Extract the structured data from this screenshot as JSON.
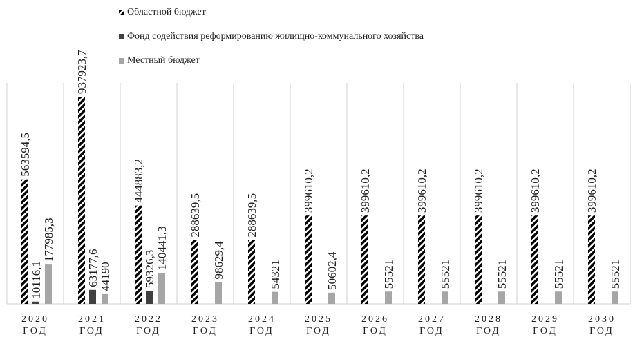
{
  "chart_data": {
    "type": "bar",
    "categories": [
      "2020 ГОД",
      "2021 ГОД",
      "2022 ГОД",
      "2023 ГОД",
      "2024 ГОД",
      "2025 ГОД",
      "2026 ГОД",
      "2027 ГОД",
      "2028 ГОД",
      "2029 ГОД",
      "2030 ГОД"
    ],
    "series": [
      {
        "name": "Областной бюджет",
        "color": "#000000",
        "hatch": true,
        "values": [
          563594.5,
          937923.7,
          444883.2,
          288639.5,
          288639.5,
          399610.2,
          399610.2,
          399610.2,
          399610.2,
          399610.2,
          399610.2
        ],
        "value_labels": [
          "563594,5",
          "937923,7",
          "444883,2",
          "288639,5",
          "288639,5",
          "399610,2",
          "399610,2",
          "399610,2",
          "399610,2",
          "399610,2",
          "399610,2"
        ]
      },
      {
        "name": "Фонд содействия реформированию жилищно-коммунального хозяйства",
        "color": "#404040",
        "values": [
          10116.1,
          63177.6,
          59326.3,
          null,
          null,
          null,
          null,
          null,
          null,
          null,
          null
        ],
        "value_labels": [
          "10116,1",
          "63177,6",
          "59326,3",
          null,
          null,
          null,
          null,
          null,
          null,
          null,
          null
        ]
      },
      {
        "name": "Местный бюджет",
        "color": "#a6a6a6",
        "values": [
          177985.3,
          44190,
          140441.3,
          98629.4,
          54321,
          50602.4,
          55521,
          55521,
          55521,
          55521,
          55521
        ],
        "value_labels": [
          "177985,3",
          "44190",
          "140441,3",
          "98629,4",
          "54321",
          "50602,4",
          "55521",
          "55521",
          "55521",
          "55521",
          "55521"
        ]
      }
    ],
    "legend": "top-left"
  }
}
